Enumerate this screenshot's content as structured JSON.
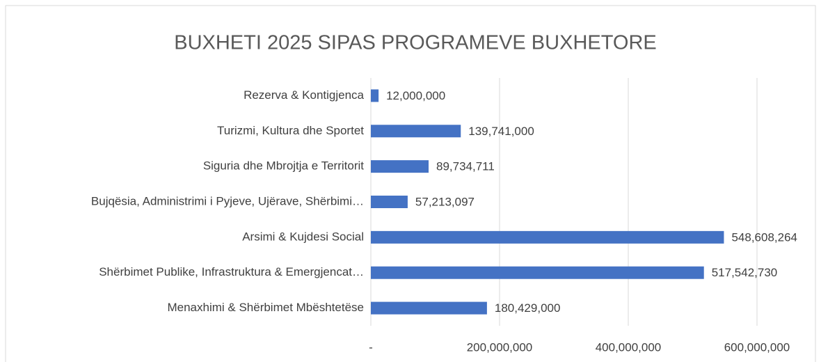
{
  "chart_data": {
    "type": "bar",
    "orientation": "horizontal",
    "title": "BUXHETI 2025 SIPAS PROGRAMEVE BUXHETORE",
    "categories": [
      "Rezerva & Kontigjenca",
      "Turizmi, Kultura dhe Sportet",
      "Siguria dhe Mbrojtja e Territorit",
      "Bujqësia, Administrimi i Pyjeve, Ujërave, Shërbimi…",
      "Arsimi & Kujdesi Social",
      "Shërbimet Publike, Infrastruktura & Emergjencat…",
      "Menaxhimi & Shërbimet Mbështetëse"
    ],
    "values": [
      12000000,
      139741000,
      89734711,
      57213097,
      548608264,
      517542730,
      180429000
    ],
    "value_labels": [
      "12,000,000",
      "139,741,000",
      "89,734,711",
      "57,213,097",
      "548,608,264",
      "517,542,730",
      "180,429,000"
    ],
    "color": "#4472c4",
    "xlim": [
      0,
      600000000
    ],
    "xticks": [
      {
        "value": 0,
        "label": "-"
      },
      {
        "value": 200000000,
        "label": "200,000,000"
      },
      {
        "value": 400000000,
        "label": "400,000,000"
      },
      {
        "value": 600000000,
        "label": "600,000,000"
      }
    ],
    "grid": true
  }
}
